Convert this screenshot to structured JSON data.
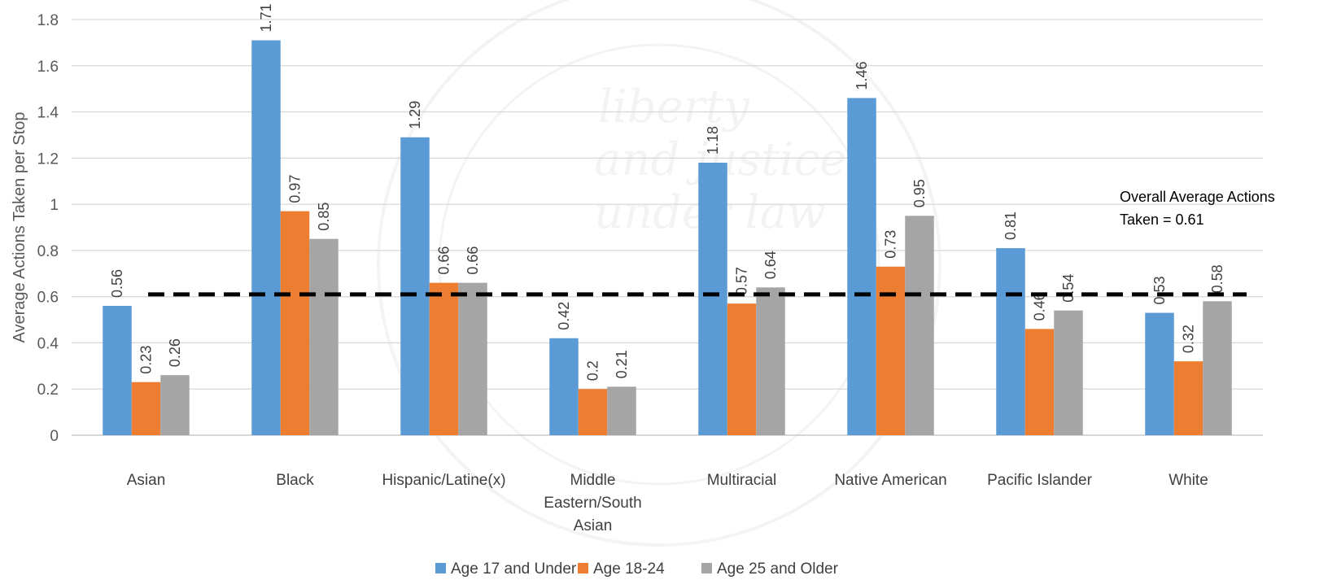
{
  "chart_data": {
    "type": "bar",
    "ylabel": "Average Actions Taken per Stop",
    "xlabel": "",
    "ylim": [
      0,
      1.8
    ],
    "yticks": [
      "0",
      "0.2",
      "0.4",
      "0.6",
      "0.8",
      "1",
      "1.2",
      "1.4",
      "1.6",
      "1.8"
    ],
    "grid": true,
    "legend_position": "bottom",
    "categories": [
      [
        "Asian"
      ],
      [
        "Black"
      ],
      [
        "Hispanic/Latine(x)"
      ],
      [
        "Middle",
        "Eastern/South",
        "Asian"
      ],
      [
        "Multiracial"
      ],
      [
        "Native American"
      ],
      [
        "Pacific Islander"
      ],
      [
        "White"
      ]
    ],
    "series": [
      {
        "name": "Age 17 and Under",
        "color": "#5B9BD5",
        "values": [
          0.56,
          1.71,
          1.29,
          0.42,
          1.18,
          1.46,
          0.81,
          0.53
        ],
        "labels": [
          "0.56",
          "1.71",
          "1.29",
          "0.42",
          "1.18",
          "1.46",
          "0.81",
          "0.53"
        ]
      },
      {
        "name": "Age 18-24",
        "color": "#ED7D31",
        "values": [
          0.23,
          0.97,
          0.66,
          0.2,
          0.57,
          0.73,
          0.46,
          0.32
        ],
        "labels": [
          "0.23",
          "0.97",
          "0.66",
          "0.2",
          "0.57",
          "0.73",
          "0.46",
          "0.32"
        ]
      },
      {
        "name": "Age 25 and Older",
        "color": "#A5A5A5",
        "values": [
          0.26,
          0.85,
          0.66,
          0.21,
          0.64,
          0.95,
          0.54,
          0.58
        ],
        "labels": [
          "0.26",
          "0.85",
          "0.66",
          "0.21",
          "0.64",
          "0.95",
          "0.54",
          "0.58"
        ]
      }
    ],
    "reference_line": {
      "value": 0.61,
      "style": "dashed",
      "color": "#000000",
      "label": [
        "Overall Average Actions",
        "Taken = 0.61"
      ]
    }
  }
}
